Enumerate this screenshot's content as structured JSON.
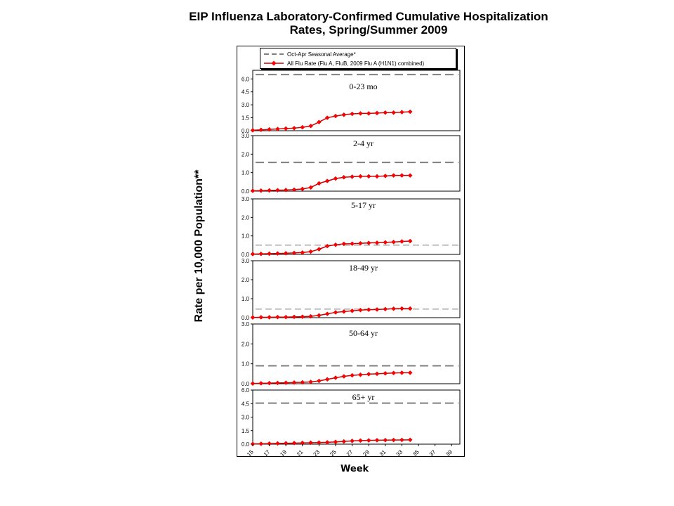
{
  "title_line1": "EIP Influenza Laboratory-Confirmed Cumulative Hospitalization",
  "title_line2": "Rates, Spring/Summer 2009",
  "ylabel": "Rate per 10,000 Population**",
  "xlabel": "Week",
  "legend": {
    "seasonal": "Oct-Apr Seasonal Average*",
    "flu": "All Flu Rate (Flu A, FluB, 2009 Flu A (H1N1) combined)"
  },
  "colors": {
    "series": "#ff0000",
    "series_line": "#cc0000",
    "dashed": "#808080"
  },
  "chart_data": [
    {
      "type": "line",
      "panel_label": "0-23 mo",
      "ylim": [
        0,
        7
      ],
      "yticks": [
        "0.0",
        "1.5",
        "3.0",
        "4.5",
        "6.0"
      ],
      "ytick_values": [
        0,
        1.5,
        3,
        4.5,
        6
      ],
      "seasonal_average": 6.5,
      "x": [
        15,
        16,
        17,
        18,
        19,
        20,
        21,
        22,
        23,
        24,
        25,
        26,
        27,
        28,
        29,
        30,
        31,
        32,
        33,
        34
      ],
      "values": [
        0.05,
        0.1,
        0.15,
        0.2,
        0.25,
        0.3,
        0.4,
        0.55,
        1.0,
        1.5,
        1.7,
        1.85,
        1.95,
        2.0,
        2.0,
        2.05,
        2.1,
        2.1,
        2.15,
        2.2
      ]
    },
    {
      "type": "line",
      "panel_label": "2-4 yr",
      "ylim": [
        0,
        3
      ],
      "yticks": [
        "0.0",
        "1.0",
        "2.0",
        "3.0"
      ],
      "ytick_values": [
        0,
        1,
        2,
        3
      ],
      "seasonal_average": 1.55,
      "x": [
        15,
        16,
        17,
        18,
        19,
        20,
        21,
        22,
        23,
        24,
        25,
        26,
        27,
        28,
        29,
        30,
        31,
        32,
        33,
        34
      ],
      "values": [
        0.02,
        0.03,
        0.04,
        0.05,
        0.06,
        0.08,
        0.12,
        0.2,
        0.42,
        0.55,
        0.68,
        0.75,
        0.78,
        0.8,
        0.8,
        0.8,
        0.82,
        0.85,
        0.85,
        0.85
      ]
    },
    {
      "type": "line",
      "panel_label": "5-17 yr",
      "ylim": [
        0,
        3
      ],
      "yticks": [
        "0.0",
        "1.0",
        "2.0",
        "3.0"
      ],
      "ytick_values": [
        0,
        1,
        2,
        3
      ],
      "seasonal_average": 0.5,
      "x": [
        15,
        16,
        17,
        18,
        19,
        20,
        21,
        22,
        23,
        24,
        25,
        26,
        27,
        28,
        29,
        30,
        31,
        32,
        33,
        34
      ],
      "values": [
        0.02,
        0.03,
        0.04,
        0.05,
        0.06,
        0.08,
        0.1,
        0.15,
        0.28,
        0.45,
        0.52,
        0.57,
        0.58,
        0.6,
        0.62,
        0.63,
        0.65,
        0.67,
        0.7,
        0.72
      ]
    },
    {
      "type": "line",
      "panel_label": "18-49 yr",
      "ylim": [
        0,
        3
      ],
      "yticks": [
        "0.0",
        "1.0",
        "2.0",
        "3.0"
      ],
      "ytick_values": [
        0,
        1,
        2,
        3
      ],
      "seasonal_average": 0.45,
      "x": [
        15,
        16,
        17,
        18,
        19,
        20,
        21,
        22,
        23,
        24,
        25,
        26,
        27,
        28,
        29,
        30,
        31,
        32,
        33,
        34
      ],
      "values": [
        0.01,
        0.02,
        0.02,
        0.03,
        0.03,
        0.04,
        0.05,
        0.07,
        0.12,
        0.2,
        0.28,
        0.32,
        0.36,
        0.4,
        0.42,
        0.43,
        0.45,
        0.47,
        0.48,
        0.48
      ]
    },
    {
      "type": "line",
      "panel_label": "50-64 yr",
      "ylim": [
        0,
        3
      ],
      "yticks": [
        "0.0",
        "1.0",
        "2.0",
        "3.0"
      ],
      "ytick_values": [
        0,
        1,
        2,
        3
      ],
      "seasonal_average": 0.9,
      "x": [
        15,
        16,
        17,
        18,
        19,
        20,
        21,
        22,
        23,
        24,
        25,
        26,
        27,
        28,
        29,
        30,
        31,
        32,
        33,
        34
      ],
      "values": [
        0.01,
        0.02,
        0.03,
        0.04,
        0.05,
        0.06,
        0.07,
        0.09,
        0.14,
        0.22,
        0.3,
        0.37,
        0.42,
        0.45,
        0.48,
        0.5,
        0.52,
        0.54,
        0.55,
        0.55
      ]
    },
    {
      "type": "line",
      "panel_label": "65+ yr",
      "ylim": [
        0,
        6
      ],
      "yticks": [
        "0.0",
        "1.5",
        "3.0",
        "4.5",
        "6.0"
      ],
      "ytick_values": [
        0,
        1.5,
        3,
        4.5,
        6
      ],
      "seasonal_average": 4.55,
      "x": [
        15,
        16,
        17,
        18,
        19,
        20,
        21,
        22,
        23,
        24,
        25,
        26,
        27,
        28,
        29,
        30,
        31,
        32,
        33,
        34
      ],
      "values": [
        0.02,
        0.04,
        0.06,
        0.08,
        0.1,
        0.12,
        0.14,
        0.16,
        0.18,
        0.2,
        0.25,
        0.3,
        0.36,
        0.4,
        0.42,
        0.44,
        0.45,
        0.46,
        0.47,
        0.48
      ]
    }
  ],
  "xaxis": {
    "range": [
      15,
      40
    ],
    "ticks": [
      "15",
      "17",
      "19",
      "21",
      "23",
      "25",
      "27",
      "29",
      "31",
      "33",
      "35",
      "37",
      "39"
    ],
    "tick_values": [
      15,
      17,
      19,
      21,
      23,
      25,
      27,
      29,
      31,
      33,
      35,
      37,
      39
    ]
  }
}
